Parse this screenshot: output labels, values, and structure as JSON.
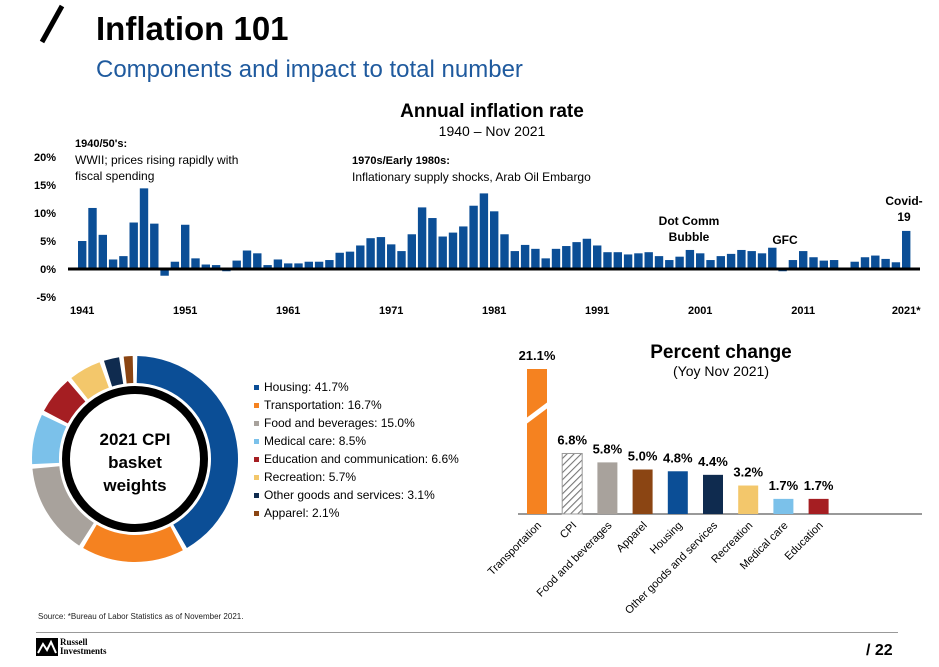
{
  "slide": {
    "title": "Inflation 101",
    "subtitle": "Components and impact to total number",
    "source": "Source: *Bureau of Labor Statistics as of November 2021.",
    "page_number": "/ 22",
    "logo": {
      "line1": "Russell",
      "line2": "Investments"
    }
  },
  "chart_data": [
    {
      "type": "bar",
      "title": "Annual inflation rate",
      "subtitle": "1940 – Nov 2021",
      "bar_color": "#0b4e96",
      "ylim": [
        -5,
        20
      ],
      "yticks": [
        "20%",
        "15%",
        "10%",
        "5%",
        "0%",
        "-5%"
      ],
      "xtick_labels": [
        "1941",
        "1951",
        "1961",
        "1971",
        "1981",
        "1991",
        "2001",
        "2011",
        "2021*"
      ],
      "x": [
        1941,
        1942,
        1943,
        1944,
        1945,
        1946,
        1947,
        1948,
        1949,
        1950,
        1951,
        1952,
        1953,
        1954,
        1955,
        1956,
        1957,
        1958,
        1959,
        1960,
        1961,
        1962,
        1963,
        1964,
        1965,
        1966,
        1967,
        1968,
        1969,
        1970,
        1971,
        1972,
        1973,
        1974,
        1975,
        1976,
        1977,
        1978,
        1979,
        1980,
        1981,
        1982,
        1983,
        1984,
        1985,
        1986,
        1987,
        1988,
        1989,
        1990,
        1991,
        1992,
        1993,
        1994,
        1995,
        1996,
        1997,
        1998,
        1999,
        2000,
        2001,
        2002,
        2003,
        2004,
        2005,
        2006,
        2007,
        2008,
        2009,
        2010,
        2011,
        2012,
        2013,
        2014,
        2015,
        2016,
        2017,
        2018,
        2019,
        2020,
        2021
      ],
      "values": [
        5.0,
        10.9,
        6.1,
        1.7,
        2.3,
        8.3,
        14.4,
        8.1,
        -1.2,
        1.3,
        7.9,
        1.9,
        0.8,
        0.7,
        -0.4,
        1.5,
        3.3,
        2.8,
        0.7,
        1.7,
        1.0,
        1.0,
        1.3,
        1.3,
        1.6,
        2.9,
        3.1,
        4.2,
        5.5,
        5.7,
        4.4,
        3.2,
        6.2,
        11.0,
        9.1,
        5.8,
        6.5,
        7.6,
        11.3,
        13.5,
        10.3,
        6.2,
        3.2,
        4.3,
        3.6,
        1.9,
        3.6,
        4.1,
        4.8,
        5.4,
        4.2,
        3.0,
        3.0,
        2.6,
        2.8,
        3.0,
        2.3,
        1.6,
        2.2,
        3.4,
        2.8,
        1.6,
        2.3,
        2.7,
        3.4,
        3.2,
        2.8,
        3.8,
        -0.4,
        1.6,
        3.2,
        2.1,
        1.5,
        1.6,
        0.1,
        1.3,
        2.1,
        2.4,
        1.8,
        1.2,
        6.8
      ],
      "annotations": [
        {
          "title": "1940/50's:",
          "lines": [
            "WWII; prices rising rapidly with",
            "fiscal spending"
          ]
        },
        {
          "title": "1970s/Early 1980s:",
          "lines": [
            "Inflationary supply shocks, Arab Oil Embargo"
          ]
        },
        {
          "lines": [
            "Dot Comm",
            "Bubble"
          ]
        },
        {
          "lines": [
            "GFC"
          ]
        },
        {
          "lines": [
            "Covid-",
            "19"
          ]
        }
      ]
    },
    {
      "type": "pie",
      "title": "2021 CPI basket weights",
      "center_lines": [
        "2021 CPI",
        "basket",
        "weights"
      ],
      "legend_position": "right",
      "slices": [
        {
          "label": "Housing: 41.7%",
          "value": 41.7,
          "color": "#0b4e96"
        },
        {
          "label": "Transportation: 16.7%",
          "value": 16.7,
          "color": "#f58220"
        },
        {
          "label": "Food and beverages: 15.0%",
          "value": 15.0,
          "color": "#a8a29c"
        },
        {
          "label": "Medical care: 8.5%",
          "value": 8.5,
          "color": "#7bc1ea"
        },
        {
          "label": "Education and communication: 6.6%",
          "value": 6.6,
          "color": "#a51e22"
        },
        {
          "label": "Recreation: 5.7%",
          "value": 5.7,
          "color": "#f3c76b"
        },
        {
          "label": "Other goods and services: 3.1%",
          "value": 3.1,
          "color": "#0f2b4f"
        },
        {
          "label": "Apparel: 2.1%",
          "value": 2.1,
          "color": "#8b4513"
        }
      ]
    },
    {
      "type": "bar",
      "title": "Percent change",
      "subtitle": "(Yoy Nov 2021)",
      "categories": [
        "Transportation",
        "CPI",
        "Food and beverages",
        "Apparel",
        "Housing",
        "Other goods and services",
        "Recreation",
        "Medical care",
        "Education"
      ],
      "values": [
        21.1,
        6.8,
        5.8,
        5.0,
        4.8,
        4.4,
        3.2,
        1.7,
        1.7
      ],
      "labels": [
        "21.1%",
        "6.8%",
        "5.8%",
        "5.0%",
        "4.8%",
        "4.4%",
        "3.2%",
        "1.7%",
        "1.7%"
      ],
      "colors": [
        "#f58220",
        "hatched",
        "#a8a29c",
        "#8b4513",
        "#0b4e96",
        "#0f2b4f",
        "#f3c76b",
        "#7bc1ea",
        "#a51e22"
      ],
      "axis_break": "Transportation"
    }
  ]
}
